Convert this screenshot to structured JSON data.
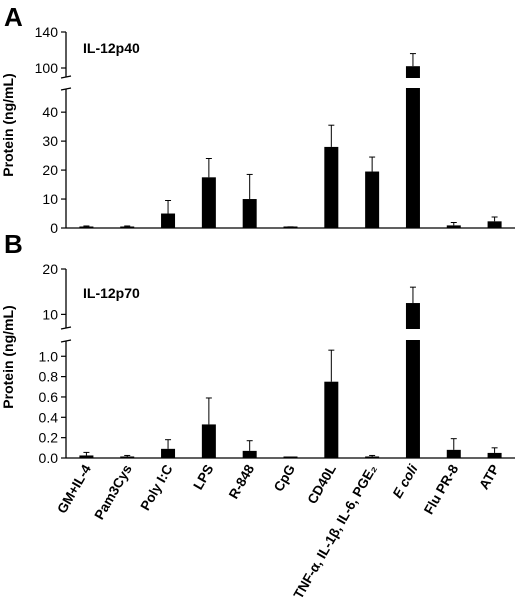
{
  "chart_data": [
    {
      "panel_label": "A",
      "type": "bar",
      "title": "IL-12p40",
      "ylabel": "Protein (ng/mL)",
      "y_axis_break": true,
      "upper_ylim": [
        90,
        140
      ],
      "upper_yticks": [
        100,
        140
      ],
      "lower_ylim": [
        0,
        48
      ],
      "lower_yticks": [
        0,
        10,
        20,
        30,
        40
      ],
      "categories": [
        "GM+IL-4",
        "Pam3Cys",
        "Poly I:C",
        "LPS",
        "R-848",
        "CpG",
        "CD40L",
        "TNF-α, IL-1β, IL-6, PGE₂",
        "E coli",
        "Flu PR-8",
        "ATP"
      ],
      "values": [
        0.4,
        0.4,
        5.0,
        17.5,
        10.0,
        0.3,
        28.0,
        19.5,
        102,
        0.9,
        2.3
      ],
      "errors": [
        0.3,
        0.3,
        4.5,
        6.5,
        8.5,
        0.1,
        7.5,
        5.0,
        14,
        1.0,
        1.5
      ],
      "color": "#000000"
    },
    {
      "panel_label": "B",
      "type": "bar",
      "title": "IL-12p70",
      "ylabel": "Protein (ng/mL)",
      "y_axis_break": true,
      "upper_ylim": [
        7,
        20
      ],
      "upper_yticks": [
        10.0,
        20.0
      ],
      "lower_ylim": [
        0,
        1.15
      ],
      "lower_yticks": [
        0,
        0.2,
        0.4,
        0.6,
        0.8,
        1.0
      ],
      "categories": [
        "GM+IL-4",
        "Pam3Cys",
        "Poly I:C",
        "LPS",
        "R-848",
        "CpG",
        "CD40L",
        "TNF-α, IL-1β, IL-6, PGE₂",
        "E coli",
        "Flu PR-8",
        "ATP"
      ],
      "values": [
        0.025,
        0.015,
        0.09,
        0.33,
        0.07,
        0.003,
        0.75,
        0.015,
        12.5,
        0.08,
        0.05
      ],
      "errors": [
        0.03,
        0.01,
        0.09,
        0.26,
        0.1,
        0.0,
        0.31,
        0.01,
        3.5,
        0.11,
        0.05
      ],
      "color": "#000000"
    }
  ]
}
